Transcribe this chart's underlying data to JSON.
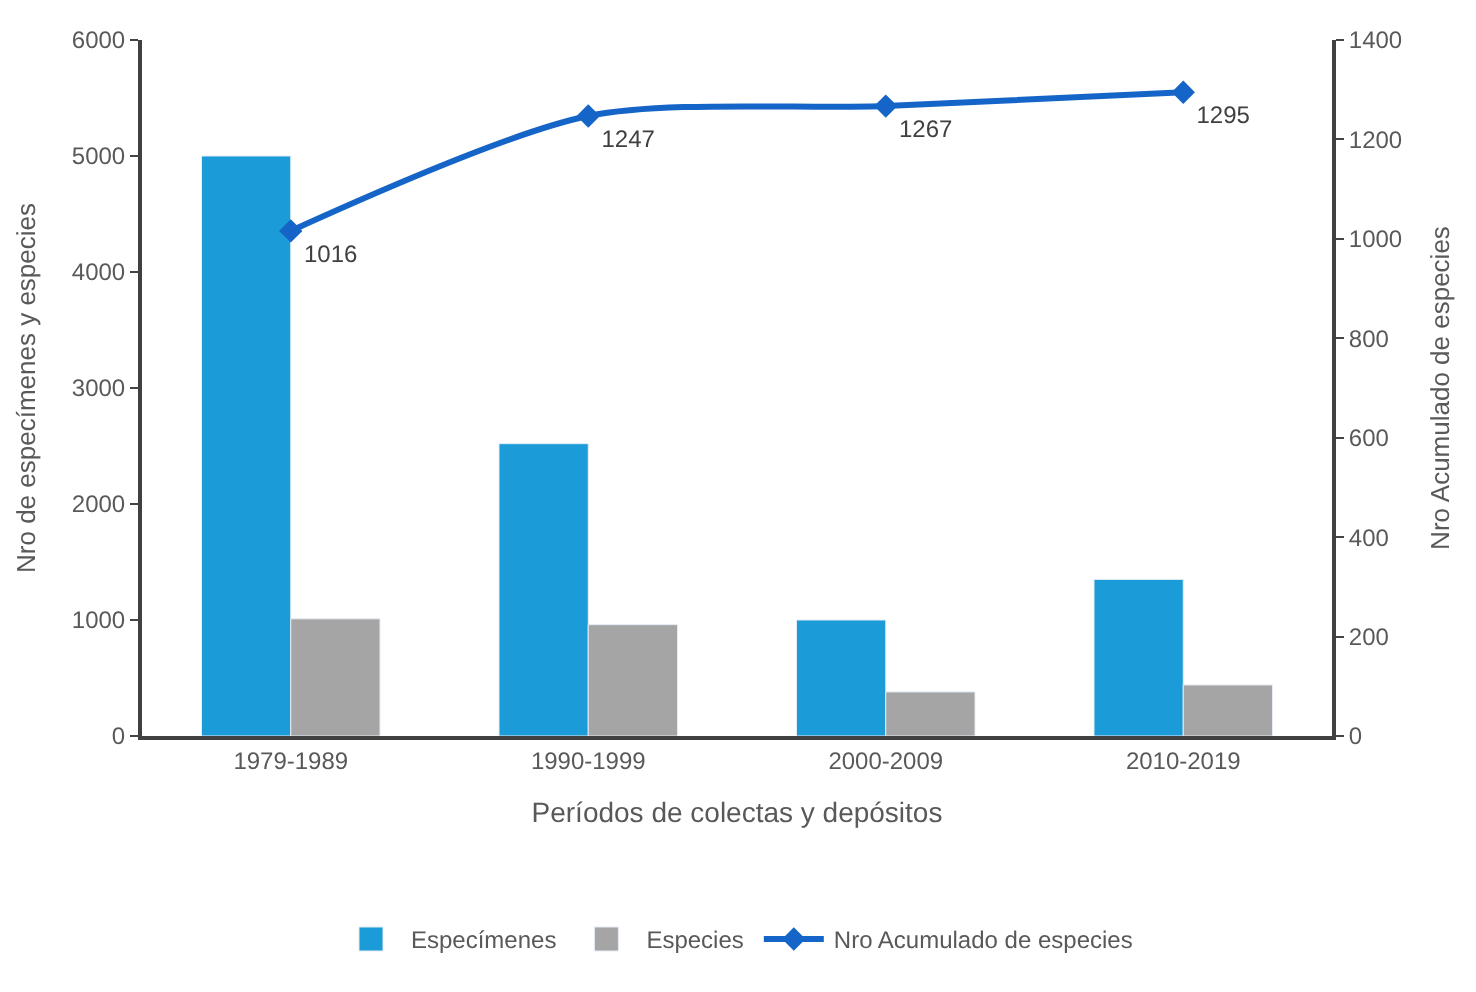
{
  "chart_data": {
    "type": "bar",
    "xlabel": "Períodos de colectas y depósitos",
    "ylabel": "Nro de especímenes y especies",
    "y2label": "Nro Acumulado de especies",
    "categories": [
      "1979-1989",
      "1990-1999",
      "2000-2009",
      "2010-2019"
    ],
    "series": [
      {
        "name": "Especímenes",
        "color": "#1b9bd7",
        "values": [
          5000,
          2520,
          1000,
          1350
        ]
      },
      {
        "name": "Especies",
        "color": "#a5a5a5",
        "values": [
          1010,
          960,
          380,
          440
        ]
      },
      {
        "name": "Nro Acumulado de especies",
        "type": "line",
        "axis": "y2",
        "color": "#1565c8",
        "marker": "diamond",
        "line_style": "solid",
        "data_labels": true,
        "values": [
          1016,
          1247,
          1267,
          1295
        ]
      }
    ],
    "ylim": [
      0,
      6000
    ],
    "yticks": [
      0,
      1000,
      2000,
      3000,
      4000,
      5000,
      6000
    ],
    "y2lim": [
      0,
      1400
    ],
    "y2ticks": [
      0,
      200,
      400,
      600,
      800,
      1000,
      1200,
      1400
    ],
    "legend": "bottom"
  }
}
